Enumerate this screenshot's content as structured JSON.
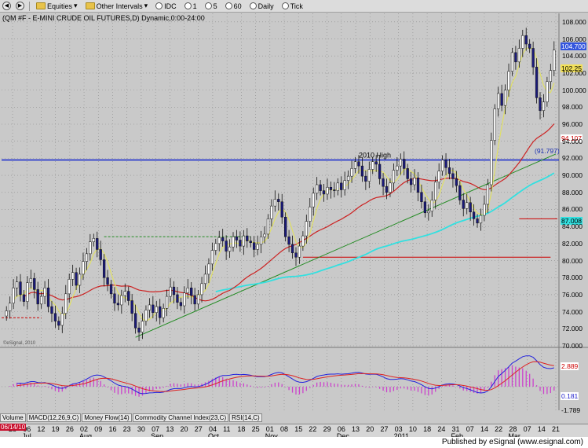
{
  "toolbar": {
    "equities": "Equities",
    "other_intervals": "Other Intervals",
    "idc": "IDC",
    "i1": "1",
    "i5": "5",
    "i60": "60",
    "daily": "Daily",
    "tick": "Tick"
  },
  "chart_title": "(QM #F - E-MINI CRUDE OIL FUTURES,D) Dynamic,0:00-24:00",
  "annotation_2010_high": "2010 High",
  "watermark": "©eSignal, 2010",
  "indicator_tabs": [
    "Volume",
    "MACD(12,26,9,C)",
    "Money Flow(14)",
    "Commodity Channel Index(23,C)",
    "RSI(14,C)"
  ],
  "date_badge": "06/14/10",
  "x_ticks": [
    "28",
    "06",
    "12",
    "19",
    "26",
    "02",
    "09",
    "16",
    "23",
    "30",
    "07",
    "13",
    "20",
    "27",
    "04",
    "11",
    "18",
    "25",
    "01",
    "08",
    "15",
    "22",
    "29",
    "06",
    "13",
    "20",
    "27",
    "03",
    "10",
    "18",
    "24",
    "31",
    "07",
    "14",
    "22",
    "28",
    "07",
    "14",
    "21"
  ],
  "x_months": [
    {
      "label": "Jul",
      "tick_index": 1
    },
    {
      "label": "Aug",
      "tick_index": 5
    },
    {
      "label": "Sep",
      "tick_index": 10
    },
    {
      "label": "Oct",
      "tick_index": 14
    },
    {
      "label": "Nov",
      "tick_index": 18
    },
    {
      "label": "Dec",
      "tick_index": 23
    },
    {
      "label": "2011",
      "tick_index": 27
    },
    {
      "label": "Feb",
      "tick_index": 31
    },
    {
      "label": "Mar",
      "tick_index": 35
    }
  ],
  "price_axis_labels": [
    "108.000",
    "106.000",
    "104.000",
    "102.000",
    "100.000",
    "98.000",
    "96.000",
    "94.000",
    "92.000",
    "90.000",
    "88.000",
    "86.000",
    "84.000",
    "82.000",
    "80.000",
    "78.000",
    "76.000",
    "74.000",
    "72.000",
    "70.000"
  ],
  "price_markers": {
    "last": "104.700",
    "ma_fast": "102.25",
    "ma_mid": "94.107",
    "level": "(91.797)",
    "ma_slow": "87.008"
  },
  "macd_markers": {
    "macd": "2.889",
    "hist": "0.181",
    "signal": "-1.789"
  },
  "footer": "Published by eSignal (www.esignal.com)",
  "colors": {
    "background": "#c9c9c9",
    "up_candle": "#ffffff",
    "down_candle": "#1a1a7a",
    "ma_fast": "#e0e066",
    "ma_mid": "#cc2222",
    "ma_slow": "#33e0e0",
    "trendline": "#228b22",
    "horizontal_2010_high": "#2233cc",
    "macd": "#2222dd",
    "signal": "#dd2222",
    "histogram": "#cc44cc"
  },
  "chart_data": {
    "type": "candlestick",
    "ylim": [
      70,
      109
    ],
    "closes": [
      74.1,
      75.0,
      76.8,
      77.5,
      76.0,
      75.2,
      77.4,
      77.9,
      76.6,
      74.9,
      75.8,
      76.8,
      74.6,
      73.8,
      72.9,
      72.4,
      73.8,
      76.1,
      77.8,
      78.6,
      77.1,
      78.4,
      79.9,
      80.8,
      82.2,
      82.6,
      81.3,
      80.1,
      78.0,
      77.2,
      76.1,
      75.0,
      74.8,
      75.9,
      76.4,
      75.3,
      73.8,
      72.1,
      71.6,
      72.9,
      74.2,
      74.8,
      73.9,
      74.6,
      73.3,
      74.4,
      75.8,
      76.9,
      76.0,
      75.1,
      74.7,
      76.2,
      76.8,
      75.9,
      74.9,
      76.0,
      77.3,
      78.4,
      79.6,
      81.2,
      82.0,
      82.7,
      82.3,
      81.1,
      81.6,
      82.8,
      82.4,
      81.7,
      82.9,
      82.3,
      82.1,
      81.3,
      81.9,
      82.8,
      83.1,
      84.9,
      86.4,
      87.2,
      86.9,
      85.1,
      82.8,
      81.9,
      80.9,
      80.4,
      81.7,
      82.9,
      84.6,
      86.3,
      87.9,
      88.9,
      88.2,
      87.8,
      88.6,
      88.3,
      88.2,
      89.1,
      88.3,
      89.4,
      89.9,
      90.8,
      91.6,
      91.1,
      89.9,
      89.3,
      90.7,
      91.6,
      91.3,
      89.6,
      88.7,
      88.0,
      89.1,
      90.6,
      91.1,
      91.9,
      90.8,
      89.6,
      88.9,
      89.7,
      88.0,
      86.9,
      85.6,
      85.8,
      87.1,
      89.2,
      90.5,
      91.8,
      90.9,
      90.2,
      89.6,
      88.8,
      87.1,
      86.1,
      86.8,
      85.7,
      84.9,
      84.4,
      85.3,
      86.6,
      88.9,
      94.1,
      97.8,
      99.6,
      98.2,
      100.0,
      102.2,
      104.4,
      103.3,
      104.9,
      106.4,
      105.4,
      104.9,
      102.7,
      99.1,
      97.6,
      98.6,
      101.0,
      102.3,
      104.7
    ],
    "series": [
      {
        "name": "MA fast (yellow)"
      },
      {
        "name": "MA mid (red)"
      },
      {
        "name": "MA slow (cyan)"
      }
    ],
    "horizontal_level": 91.797,
    "support_levels": [
      84.9,
      80.4
    ],
    "resistance_dashed": [
      82.8,
      73.3
    ],
    "macd": {
      "last_macd": 2.889,
      "last_hist": 0.181,
      "last_signal": -1.789
    }
  }
}
